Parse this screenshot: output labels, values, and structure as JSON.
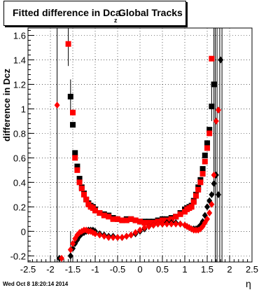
{
  "title": {
    "main": "Fitted difference in Dca",
    "subscript": "z",
    "suffix": "Global Tracks"
  },
  "timestamp": "Wed Oct  8 18:20:14 2014",
  "chart_data": {
    "type": "scatter",
    "title": "Fitted difference in Dca_z Global Tracks",
    "xlabel": "η",
    "ylabel": "difference in Dcz",
    "xlim": [
      -2.5,
      2.5
    ],
    "ylim": [
      -0.25,
      1.66
    ],
    "xticks": [
      "-2.5",
      "-2",
      "-1.5",
      "-1",
      "-0.5",
      "0",
      "0.5",
      "1",
      "1.5",
      "2",
      "2.5"
    ],
    "yticks": [
      "-0.2",
      "0",
      "0.2",
      "0.4",
      "0.6",
      "0.8",
      "1",
      "1.2",
      "1.4",
      "1.6"
    ],
    "grid": true,
    "series": [
      {
        "marker": "square",
        "color": "#000000",
        "x": [
          -1.55,
          -1.5,
          -1.45,
          -1.4,
          -1.35,
          -1.3,
          -1.25,
          -1.2,
          -1.15,
          -1.1,
          -1.05,
          -1.0,
          -0.9,
          -0.8,
          -0.7,
          -0.6,
          -0.5,
          -0.4,
          -0.3,
          -0.2,
          -0.1,
          0.0,
          0.1,
          0.2,
          0.3,
          0.4,
          0.5,
          0.6,
          0.7,
          0.8,
          0.9,
          1.0,
          1.05,
          1.1,
          1.15,
          1.2,
          1.25,
          1.3,
          1.35,
          1.4,
          1.45,
          1.5,
          1.55,
          1.6,
          1.65
        ],
        "y": [
          1.1,
          0.87,
          0.64,
          0.53,
          0.43,
          0.36,
          0.31,
          0.26,
          0.23,
          0.21,
          0.2,
          0.18,
          0.15,
          0.14,
          0.13,
          0.11,
          0.1,
          0.09,
          0.1,
          0.1,
          0.09,
          0.08,
          0.08,
          0.08,
          0.08,
          0.09,
          0.1,
          0.1,
          0.11,
          0.12,
          0.15,
          0.18,
          0.19,
          0.2,
          0.21,
          0.25,
          0.3,
          0.36,
          0.42,
          0.51,
          0.62,
          0.72,
          0.83,
          1.02,
          1.2
        ]
      },
      {
        "marker": "square",
        "color": "#ff0000",
        "x": [
          -1.6,
          -1.5,
          -1.45,
          -1.4,
          -1.35,
          -1.3,
          -1.25,
          -1.2,
          -1.15,
          -1.1,
          -1.05,
          -1.0,
          -0.9,
          -0.8,
          -0.7,
          -0.6,
          -0.5,
          -0.4,
          -0.3,
          -0.2,
          -0.1,
          0.0,
          0.1,
          0.2,
          0.3,
          0.4,
          0.5,
          0.6,
          0.7,
          0.8,
          0.9,
          1.0,
          1.05,
          1.1,
          1.15,
          1.2,
          1.25,
          1.3,
          1.35,
          1.4,
          1.45,
          1.5,
          1.55,
          1.6
        ],
        "y": [
          1.53,
          0.97,
          0.6,
          0.5,
          0.4,
          0.35,
          0.3,
          0.26,
          0.22,
          0.2,
          0.19,
          0.17,
          0.15,
          0.13,
          0.12,
          0.1,
          0.1,
          0.09,
          0.09,
          0.1,
          0.09,
          0.08,
          0.07,
          0.07,
          0.07,
          0.08,
          0.09,
          0.09,
          0.1,
          0.12,
          0.14,
          0.16,
          0.18,
          0.19,
          0.2,
          0.24,
          0.29,
          0.34,
          0.4,
          0.47,
          0.57,
          0.68,
          0.8,
          1.41
        ]
      },
      {
        "marker": "diamond",
        "color": "#000000",
        "x": [
          -1.8,
          -1.55,
          -1.5,
          -1.45,
          -1.4,
          -1.35,
          -1.3,
          -1.25,
          -1.2,
          -1.15,
          -1.1,
          -1.05,
          -1.0,
          -0.9,
          -0.8,
          -0.7,
          -0.6,
          -0.5,
          -0.4,
          -0.3,
          -0.2,
          -0.1,
          0.0,
          0.1,
          0.2,
          0.3,
          0.4,
          0.5,
          0.6,
          0.7,
          0.8,
          0.9,
          1.0,
          1.05,
          1.1,
          1.15,
          1.2,
          1.25,
          1.3,
          1.35,
          1.4,
          1.45,
          1.5,
          1.55,
          1.6,
          1.65,
          1.7,
          1.75,
          1.8
        ],
        "y": [
          -0.22,
          -0.2,
          -0.14,
          -0.1,
          -0.07,
          -0.04,
          -0.02,
          -0.01,
          0.0,
          0.01,
          0.01,
          0.01,
          0.0,
          -0.02,
          -0.03,
          -0.04,
          -0.04,
          -0.05,
          -0.05,
          -0.04,
          -0.03,
          -0.02,
          0.0,
          0.02,
          0.04,
          0.05,
          0.06,
          0.06,
          0.07,
          0.07,
          0.07,
          0.06,
          0.05,
          0.04,
          0.03,
          0.02,
          0.02,
          0.02,
          0.03,
          0.05,
          0.08,
          0.13,
          0.2,
          0.25,
          0.3,
          0.39,
          0.46,
          0.3,
          1.4
        ]
      },
      {
        "marker": "diamond",
        "color": "#ff0000",
        "x": [
          -1.85,
          -1.75,
          -1.55,
          -1.5,
          -1.45,
          -1.4,
          -1.35,
          -1.3,
          -1.25,
          -1.2,
          -1.15,
          -1.1,
          -1.05,
          -1.0,
          -0.9,
          -0.8,
          -0.7,
          -0.6,
          -0.5,
          -0.4,
          -0.3,
          -0.2,
          -0.1,
          0.0,
          0.1,
          0.2,
          0.3,
          0.4,
          0.5,
          0.6,
          0.7,
          0.8,
          0.9,
          1.0,
          1.05,
          1.1,
          1.15,
          1.2,
          1.25,
          1.3,
          1.35,
          1.4,
          1.45,
          1.5,
          1.55,
          1.6,
          1.65,
          1.7,
          1.75
        ],
        "y": [
          1.03,
          -0.22,
          -0.15,
          -0.1,
          -0.06,
          -0.03,
          -0.01,
          0.0,
          0.01,
          0.01,
          0.0,
          0.0,
          -0.01,
          -0.02,
          -0.03,
          -0.04,
          -0.05,
          -0.05,
          -0.05,
          -0.05,
          -0.04,
          -0.03,
          -0.01,
          0.01,
          0.03,
          0.04,
          0.05,
          0.06,
          0.06,
          0.06,
          0.06,
          0.06,
          0.06,
          0.05,
          0.04,
          0.03,
          0.02,
          0.01,
          0.01,
          0.01,
          0.02,
          0.04,
          0.07,
          0.1,
          0.15,
          0.22,
          0.46,
          0.9,
          0.99
        ]
      }
    ],
    "error_bars": [
      {
        "x": -1.85,
        "y0": -0.25,
        "y1": 1.66
      },
      {
        "x": -1.6,
        "y0": 1.35,
        "y1": 1.66
      },
      {
        "x": -1.55,
        "y0": 0.95,
        "y1": 1.24
      },
      {
        "x": -1.55,
        "y0": -0.25,
        "y1": 0.0
      },
      {
        "x": 1.6,
        "y0": 0.9,
        "y1": 1.2
      },
      {
        "x": 1.65,
        "y0": 0.3,
        "y1": 1.66
      },
      {
        "x": 1.68,
        "y0": -0.25,
        "y1": 1.66
      },
      {
        "x": 1.72,
        "y0": -0.25,
        "y1": 1.66
      },
      {
        "x": 1.78,
        "y0": -0.25,
        "y1": 1.66
      },
      {
        "x": 1.83,
        "y0": -0.25,
        "y1": 1.66
      }
    ]
  }
}
